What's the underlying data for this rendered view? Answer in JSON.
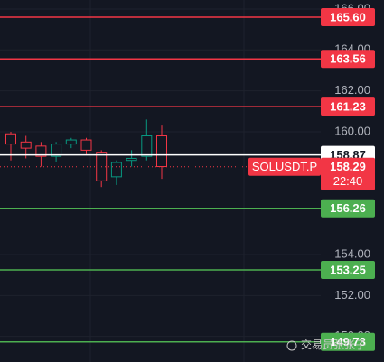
{
  "chart_data": {
    "type": "candlestick",
    "ylim": [
      148.75,
      166.44
    ],
    "yticks": [
      {
        "value": 166,
        "label": "166.00"
      },
      {
        "value": 164,
        "label": "164.00"
      },
      {
        "value": 162,
        "label": "162.00"
      },
      {
        "value": 160,
        "label": "160.00"
      },
      {
        "value": 154,
        "label": "154.00"
      },
      {
        "value": 152,
        "label": "152.00"
      },
      {
        "value": 150,
        "label": "150.00"
      }
    ],
    "up_color": "#089981",
    "down_color": "#f23645",
    "candles": [
      {
        "open": 159.9,
        "high": 160.0,
        "low": 158.6,
        "close": 159.4
      },
      {
        "open": 159.5,
        "high": 159.8,
        "low": 158.7,
        "close": 159.2
      },
      {
        "open": 159.3,
        "high": 159.5,
        "low": 158.3,
        "close": 158.8
      },
      {
        "open": 158.8,
        "high": 159.5,
        "low": 158.5,
        "close": 159.4
      },
      {
        "open": 159.4,
        "high": 159.7,
        "low": 159.2,
        "close": 159.6
      },
      {
        "open": 159.6,
        "high": 159.7,
        "low": 158.9,
        "close": 159.1
      },
      {
        "open": 159.0,
        "high": 159.1,
        "low": 157.3,
        "close": 157.6
      },
      {
        "open": 157.8,
        "high": 158.6,
        "low": 157.4,
        "close": 158.5
      },
      {
        "open": 158.6,
        "high": 159.1,
        "low": 158.3,
        "close": 158.7
      },
      {
        "open": 158.8,
        "high": 160.6,
        "low": 158.6,
        "close": 159.8
      },
      {
        "open": 159.8,
        "high": 160.3,
        "low": 157.7,
        "close": 158.3
      }
    ],
    "price_lines": [
      {
        "value": 165.6,
        "label": "165.60",
        "color": "#f23645"
      },
      {
        "value": 163.56,
        "color": "#f23645"
      },
      {
        "value": 161.23,
        "color": "#f23645"
      },
      {
        "value": 158.87,
        "color": "#ffffff"
      },
      {
        "value": 156.26,
        "color": "#4caf50"
      },
      {
        "value": 153.25,
        "color": "#4caf50"
      },
      {
        "value": 149.73,
        "color": "#4caf50"
      }
    ],
    "last_price": {
      "symbol": "SOLUSDT.P",
      "value": 158.29,
      "countdown": "22:40",
      "color": "#f23645"
    },
    "watermark": "交易员张张子"
  }
}
